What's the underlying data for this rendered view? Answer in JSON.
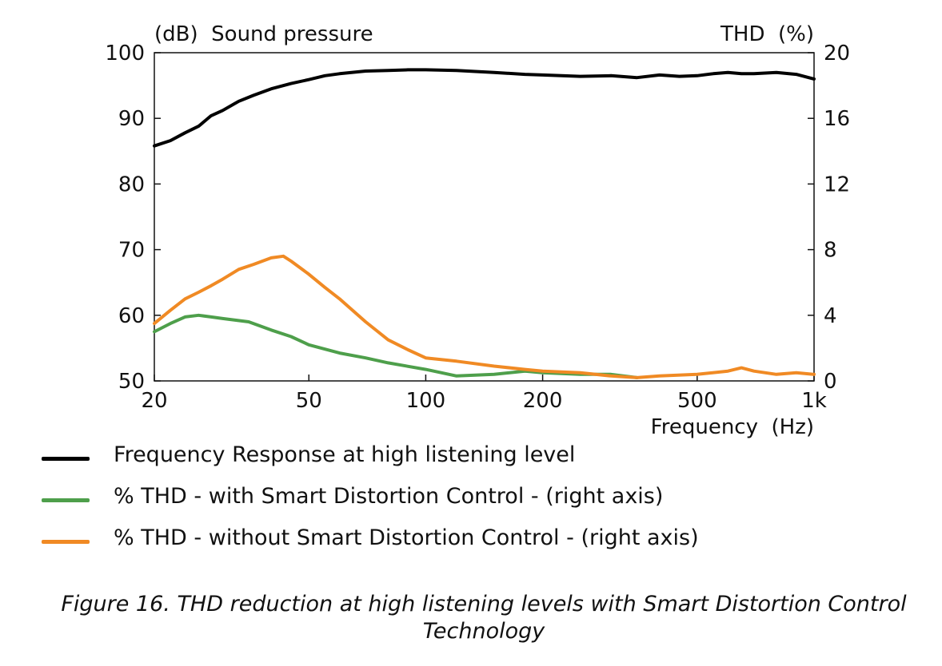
{
  "caption": "Figure 16. THD reduction at high listening levels with Smart Distortion Control Technology",
  "legend": [
    {
      "label": "Frequency Response at high listening level",
      "color": "#000000"
    },
    {
      "label": "% THD - with Smart Distortion Control - (right axis)",
      "color": "#4e9f4b"
    },
    {
      "label": "% THD - without Smart Distortion Control - (right axis)",
      "color": "#f08a24"
    }
  ],
  "chart_data": {
    "type": "line",
    "left_axis_label": "(dB)  Sound pressure",
    "right_axis_label": "THD  (%)",
    "xlabel": "Frequency  (Hz)",
    "x_scale": "log",
    "xlim": [
      20,
      1000
    ],
    "ylim_left": [
      50,
      100
    ],
    "ylim_right": [
      0,
      20
    ],
    "x_ticks": [
      {
        "value": 20,
        "label": "20"
      },
      {
        "value": 50,
        "label": "50"
      },
      {
        "value": 100,
        "label": "100"
      },
      {
        "value": 200,
        "label": "200"
      },
      {
        "value": 500,
        "label": "500"
      },
      {
        "value": 1000,
        "label": "1k"
      }
    ],
    "y_left_ticks": [
      {
        "value": 50,
        "label": "50"
      },
      {
        "value": 60,
        "label": "60"
      },
      {
        "value": 70,
        "label": "70"
      },
      {
        "value": 80,
        "label": "80"
      },
      {
        "value": 90,
        "label": "90"
      },
      {
        "value": 100,
        "label": "100"
      }
    ],
    "y_right_ticks": [
      {
        "value": 0,
        "label": "0"
      },
      {
        "value": 4,
        "label": "4"
      },
      {
        "value": 8,
        "label": "8"
      },
      {
        "value": 12,
        "label": "12"
      },
      {
        "value": 16,
        "label": "16"
      },
      {
        "value": 20,
        "label": "20"
      }
    ],
    "series": [
      {
        "name": "Frequency Response at high listening level",
        "axis": "left",
        "color": "#000000",
        "x": [
          20,
          22,
          24,
          26,
          28,
          30,
          33,
          36,
          40,
          45,
          50,
          55,
          60,
          70,
          80,
          90,
          100,
          120,
          150,
          180,
          200,
          250,
          300,
          350,
          400,
          450,
          500,
          550,
          600,
          650,
          700,
          800,
          900,
          1000
        ],
        "y": [
          85.8,
          86.6,
          87.8,
          88.8,
          90.4,
          91.2,
          92.6,
          93.5,
          94.5,
          95.3,
          95.9,
          96.5,
          96.8,
          97.2,
          97.3,
          97.4,
          97.4,
          97.3,
          97.0,
          96.7,
          96.6,
          96.4,
          96.5,
          96.2,
          96.6,
          96.4,
          96.5,
          96.8,
          97.0,
          96.8,
          96.8,
          97.0,
          96.7,
          96.0
        ]
      },
      {
        "name": "% THD - with Smart Distortion Control - (right axis)",
        "axis": "right",
        "color": "#4e9f4b",
        "x": [
          20,
          22,
          24,
          26,
          28,
          30,
          35,
          40,
          45,
          50,
          60,
          70,
          80,
          100,
          120,
          150,
          180,
          200,
          250,
          300,
          350
        ],
        "y": [
          3.0,
          3.5,
          3.9,
          4.0,
          3.9,
          3.8,
          3.6,
          3.1,
          2.7,
          2.2,
          1.7,
          1.4,
          1.1,
          0.7,
          0.3,
          0.4,
          0.6,
          0.5,
          0.4,
          0.4,
          0.2
        ]
      },
      {
        "name": "% THD - without Smart Distortion Control - (right axis)",
        "axis": "right",
        "color": "#f08a24",
        "x": [
          20,
          22,
          24,
          26,
          28,
          30,
          33,
          36,
          40,
          43,
          45,
          50,
          55,
          60,
          70,
          80,
          90,
          100,
          120,
          150,
          180,
          200,
          250,
          300,
          350,
          400,
          500,
          600,
          650,
          700,
          800,
          900,
          1000
        ],
        "y": [
          3.5,
          4.3,
          5.0,
          5.4,
          5.8,
          6.2,
          6.8,
          7.1,
          7.5,
          7.6,
          7.3,
          6.5,
          5.7,
          5.0,
          3.6,
          2.5,
          1.9,
          1.4,
          1.2,
          0.9,
          0.7,
          0.6,
          0.5,
          0.3,
          0.2,
          0.3,
          0.4,
          0.6,
          0.8,
          0.6,
          0.4,
          0.5,
          0.4
        ]
      }
    ]
  }
}
